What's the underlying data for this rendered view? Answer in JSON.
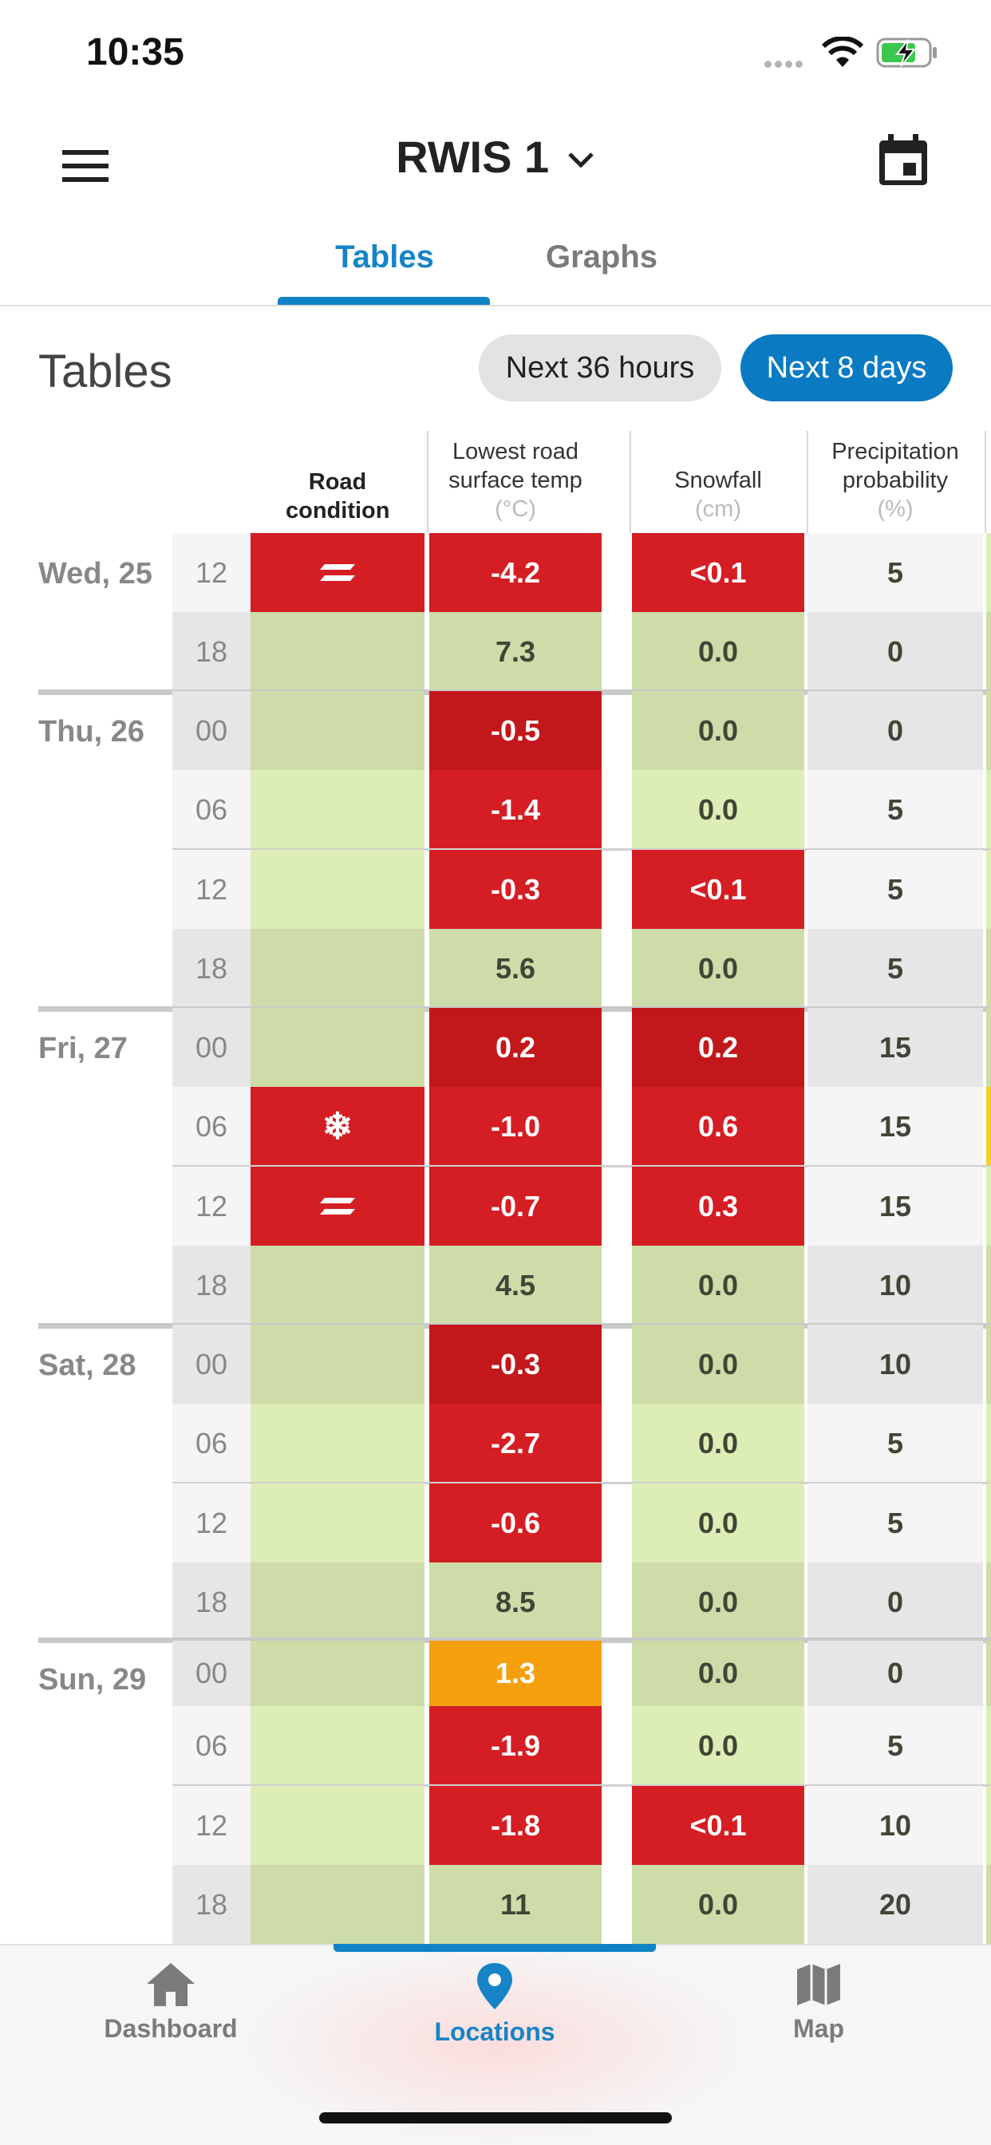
{
  "status_bar": {
    "time": "10:35"
  },
  "header": {
    "title": "RWIS 1",
    "menu_icon": "menu-icon",
    "calendar_icon": "calendar-icon"
  },
  "tabs": [
    {
      "label": "Tables",
      "active": true
    },
    {
      "label": "Graphs",
      "active": false
    }
  ],
  "section": {
    "title": "Tables",
    "buttons": [
      {
        "label": "Next 36 hours",
        "active": false
      },
      {
        "label": "Next 8 days",
        "active": true
      }
    ]
  },
  "table": {
    "columns": [
      {
        "label": "Road condition",
        "unit": ""
      },
      {
        "label": "Lowest road surface temp",
        "unit": "(°C)"
      },
      {
        "label": "Snowfall",
        "unit": "(cm)"
      },
      {
        "label": "Precipitation probability",
        "unit": "(%)"
      }
    ],
    "days": [
      {
        "label": "Wed, 25",
        "rows": [
          {
            "hour": "12",
            "condition": "wet-icon",
            "temp": "-4.2",
            "snow": "<0.1",
            "precip": "5"
          },
          {
            "hour": "18",
            "condition": "",
            "temp": "7.3",
            "snow": "0.0",
            "precip": "0"
          }
        ]
      },
      {
        "label": "Thu, 26",
        "rows": [
          {
            "hour": "00",
            "condition": "",
            "temp": "-0.5",
            "snow": "0.0",
            "precip": "0"
          },
          {
            "hour": "06",
            "condition": "",
            "temp": "-1.4",
            "snow": "0.0",
            "precip": "5"
          },
          {
            "hour": "12",
            "condition": "",
            "temp": "-0.3",
            "snow": "<0.1",
            "precip": "5"
          },
          {
            "hour": "18",
            "condition": "",
            "temp": "5.6",
            "snow": "0.0",
            "precip": "5"
          }
        ]
      },
      {
        "label": "Fri, 27",
        "rows": [
          {
            "hour": "00",
            "condition": "",
            "temp": "0.2",
            "snow": "0.2",
            "precip": "15"
          },
          {
            "hour": "06",
            "condition": "snowflake-icon",
            "temp": "-1.0",
            "snow": "0.6",
            "precip": "15"
          },
          {
            "hour": "12",
            "condition": "wet-icon",
            "temp": "-0.7",
            "snow": "0.3",
            "precip": "15"
          },
          {
            "hour": "18",
            "condition": "",
            "temp": "4.5",
            "snow": "0.0",
            "precip": "10"
          }
        ]
      },
      {
        "label": "Sat, 28",
        "rows": [
          {
            "hour": "00",
            "condition": "",
            "temp": "-0.3",
            "snow": "0.0",
            "precip": "10"
          },
          {
            "hour": "06",
            "condition": "",
            "temp": "-2.7",
            "snow": "0.0",
            "precip": "5"
          },
          {
            "hour": "12",
            "condition": "",
            "temp": "-0.6",
            "snow": "0.0",
            "precip": "5"
          },
          {
            "hour": "18",
            "condition": "",
            "temp": "8.5",
            "snow": "0.0",
            "precip": "0"
          }
        ]
      },
      {
        "label": "Sun, 29",
        "rows": [
          {
            "hour": "00",
            "condition": "",
            "temp": "1.3",
            "snow": "0.0",
            "precip": "0"
          },
          {
            "hour": "06",
            "condition": "",
            "temp": "-1.9",
            "snow": "0.0",
            "precip": "5"
          },
          {
            "hour": "12",
            "condition": "",
            "temp": "-1.8",
            "snow": "<0.1",
            "precip": "10"
          },
          {
            "hour": "18",
            "condition": "",
            "temp": "11",
            "snow": "0.0",
            "precip": "20"
          }
        ]
      }
    ]
  },
  "bottom_nav": [
    {
      "label": "Dashboard",
      "icon": "home-icon",
      "active": false
    },
    {
      "label": "Locations",
      "icon": "location-pin-icon",
      "active": true
    },
    {
      "label": "Map",
      "icon": "map-icon",
      "active": false
    }
  ],
  "colors": {
    "accent": "#0f83c4",
    "alert_red": "#d41e24",
    "dark_red": "#c2181c",
    "orange": "#f5a00f",
    "green_light": "#dcedb5",
    "green_dark": "#cddca8",
    "grey_light": "#f5f5f5",
    "grey_dark": "#e6e6e6"
  }
}
